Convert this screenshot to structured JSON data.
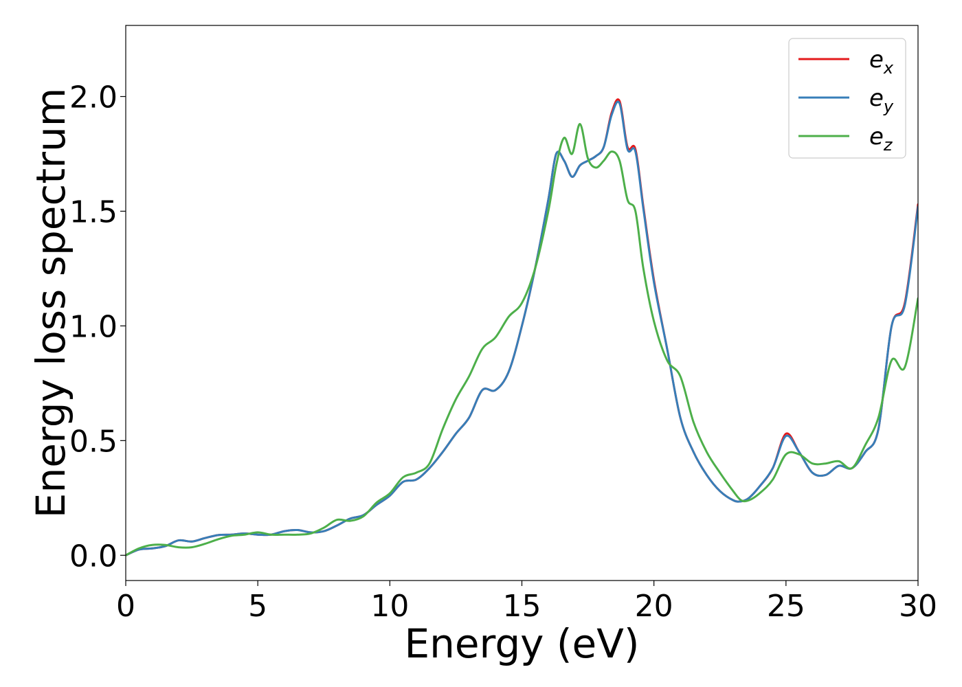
{
  "chart_data": {
    "type": "line",
    "title": "",
    "xlabel": "Energy (eV)",
    "ylabel": "Energy loss spectrum",
    "xlim": [
      0,
      30
    ],
    "ylim": [
      -0.11,
      2.31
    ],
    "xticks": [
      0,
      5,
      10,
      15,
      20,
      25,
      30
    ],
    "xtick_labels": [
      "0",
      "5",
      "10",
      "15",
      "20",
      "25",
      "30"
    ],
    "yticks": [
      0.0,
      0.5,
      1.0,
      1.5,
      2.0
    ],
    "ytick_labels": [
      "0.0",
      "0.5",
      "1.0",
      "1.5",
      "2.0"
    ],
    "grid": false,
    "legend_position": "top-right",
    "series": [
      {
        "name": "e_x",
        "label_base": "e",
        "label_sub": "x",
        "color": "#e41a1c",
        "x": [
          0,
          0.5,
          1,
          1.5,
          2,
          2.5,
          3,
          3.5,
          4,
          4.5,
          5,
          5.5,
          6,
          6.5,
          7,
          7.5,
          8,
          8.5,
          9,
          9.5,
          10,
          10.5,
          11,
          11.5,
          12,
          12.5,
          13,
          13.5,
          14,
          14.5,
          15,
          15.5,
          16,
          16.3,
          16.6,
          16.9,
          17.2,
          17.5,
          17.8,
          18.1,
          18.4,
          18.7,
          19,
          19.3,
          19.6,
          20,
          20.5,
          21,
          21.5,
          22,
          22.5,
          23,
          23.3,
          23.6,
          24,
          24.5,
          25,
          25.5,
          26,
          26.5,
          27,
          27.5,
          28,
          28.5,
          29,
          29.5,
          30
        ],
        "y": [
          0.0,
          0.025,
          0.03,
          0.04,
          0.065,
          0.06,
          0.075,
          0.088,
          0.09,
          0.095,
          0.09,
          0.09,
          0.105,
          0.11,
          0.1,
          0.105,
          0.13,
          0.16,
          0.175,
          0.22,
          0.26,
          0.32,
          0.33,
          0.38,
          0.45,
          0.53,
          0.6,
          0.72,
          0.72,
          0.8,
          1.0,
          1.25,
          1.55,
          1.75,
          1.72,
          1.65,
          1.7,
          1.72,
          1.74,
          1.78,
          1.93,
          1.98,
          1.78,
          1.77,
          1.52,
          1.2,
          0.9,
          0.6,
          0.45,
          0.35,
          0.28,
          0.24,
          0.235,
          0.25,
          0.3,
          0.38,
          0.53,
          0.45,
          0.36,
          0.35,
          0.39,
          0.38,
          0.45,
          0.55,
          1.0,
          1.1,
          1.53
        ]
      },
      {
        "name": "e_y",
        "label_base": "e",
        "label_sub": "y",
        "color": "#377eb8",
        "x": [
          0,
          0.5,
          1,
          1.5,
          2,
          2.5,
          3,
          3.5,
          4,
          4.5,
          5,
          5.5,
          6,
          6.5,
          7,
          7.5,
          8,
          8.5,
          9,
          9.5,
          10,
          10.5,
          11,
          11.5,
          12,
          12.5,
          13,
          13.5,
          14,
          14.5,
          15,
          15.5,
          16,
          16.3,
          16.6,
          16.9,
          17.2,
          17.5,
          17.8,
          18.1,
          18.4,
          18.7,
          19,
          19.3,
          19.6,
          20,
          20.5,
          21,
          21.5,
          22,
          22.5,
          23,
          23.3,
          23.6,
          24,
          24.5,
          25,
          25.5,
          26,
          26.5,
          27,
          27.5,
          28,
          28.5,
          29,
          29.5,
          30
        ],
        "y": [
          0.0,
          0.025,
          0.03,
          0.04,
          0.065,
          0.06,
          0.075,
          0.088,
          0.09,
          0.095,
          0.09,
          0.09,
          0.105,
          0.11,
          0.1,
          0.105,
          0.13,
          0.16,
          0.175,
          0.22,
          0.26,
          0.32,
          0.33,
          0.38,
          0.45,
          0.53,
          0.6,
          0.72,
          0.72,
          0.8,
          1.0,
          1.25,
          1.55,
          1.75,
          1.72,
          1.65,
          1.7,
          1.72,
          1.74,
          1.78,
          1.92,
          1.97,
          1.77,
          1.76,
          1.51,
          1.19,
          0.9,
          0.6,
          0.45,
          0.35,
          0.28,
          0.24,
          0.235,
          0.25,
          0.3,
          0.38,
          0.52,
          0.45,
          0.36,
          0.35,
          0.39,
          0.38,
          0.45,
          0.55,
          1.0,
          1.09,
          1.52
        ]
      },
      {
        "name": "e_z",
        "label_base": "e",
        "label_sub": "z",
        "color": "#4daf4a",
        "x": [
          0,
          0.5,
          1,
          1.5,
          2,
          2.5,
          3,
          3.5,
          4,
          4.5,
          5,
          5.5,
          6,
          6.5,
          7,
          7.5,
          8,
          8.5,
          9,
          9.5,
          10,
          10.5,
          11,
          11.5,
          12,
          12.5,
          13,
          13.5,
          14,
          14.5,
          15,
          15.5,
          16,
          16.3,
          16.6,
          16.9,
          17.2,
          17.5,
          17.8,
          18.1,
          18.4,
          18.7,
          19,
          19.3,
          19.6,
          20,
          20.5,
          21,
          21.5,
          22,
          22.5,
          23,
          23.3,
          23.6,
          24,
          24.5,
          25,
          25.5,
          26,
          26.5,
          27,
          27.5,
          28,
          28.5,
          29,
          29.5,
          30
        ],
        "y": [
          0.0,
          0.03,
          0.045,
          0.045,
          0.035,
          0.035,
          0.05,
          0.07,
          0.085,
          0.09,
          0.1,
          0.09,
          0.09,
          0.09,
          0.095,
          0.12,
          0.155,
          0.15,
          0.17,
          0.23,
          0.27,
          0.34,
          0.36,
          0.4,
          0.55,
          0.68,
          0.78,
          0.9,
          0.95,
          1.04,
          1.1,
          1.25,
          1.5,
          1.7,
          1.82,
          1.75,
          1.88,
          1.73,
          1.69,
          1.72,
          1.76,
          1.72,
          1.55,
          1.5,
          1.25,
          1.02,
          0.85,
          0.78,
          0.58,
          0.45,
          0.36,
          0.28,
          0.24,
          0.24,
          0.27,
          0.33,
          0.44,
          0.44,
          0.4,
          0.4,
          0.41,
          0.38,
          0.48,
          0.6,
          0.85,
          0.82,
          1.12
        ]
      }
    ]
  }
}
